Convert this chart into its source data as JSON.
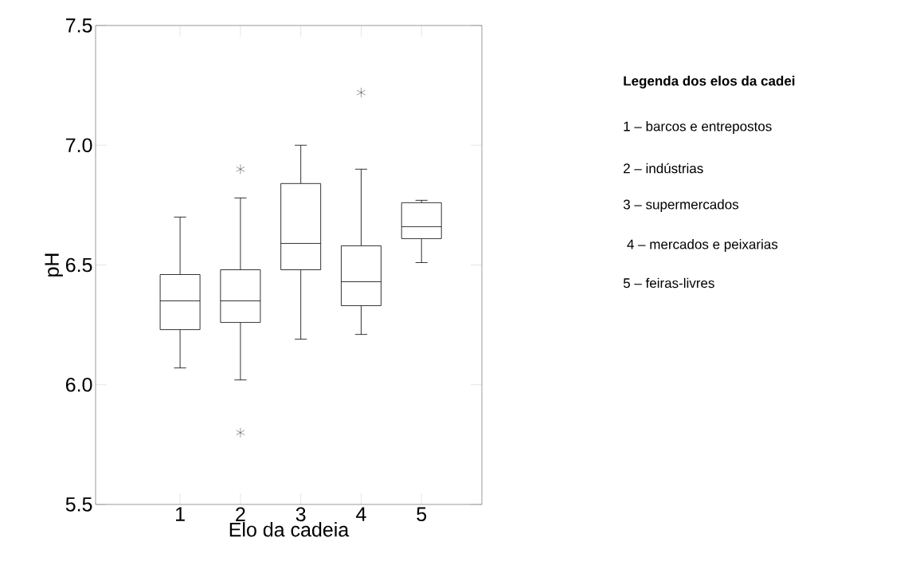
{
  "chart_data": {
    "type": "box",
    "xlabel": "Elo da cadeia",
    "ylabel": "pH",
    "categories": [
      "1",
      "2",
      "3",
      "4",
      "5"
    ],
    "boxes": [
      {
        "low": 6.07,
        "q1": 6.23,
        "median": 6.35,
        "q3": 6.46,
        "high": 6.7
      },
      {
        "low": 6.02,
        "q1": 6.26,
        "median": 6.35,
        "q3": 6.48,
        "high": 6.78,
        "outliers": [
          6.9,
          5.8
        ]
      },
      {
        "low": 6.19,
        "q1": 6.48,
        "median": 6.59,
        "q3": 6.84,
        "high": 7.0
      },
      {
        "low": 6.21,
        "q1": 6.33,
        "median": 6.43,
        "q3": 6.58,
        "high": 6.9,
        "outliers": [
          7.22
        ]
      },
      {
        "low": 6.51,
        "q1": 6.61,
        "median": 6.66,
        "q3": 6.76,
        "high": 6.77
      }
    ],
    "ylim": [
      5.5,
      7.5
    ],
    "yticks": [
      5.5,
      {
        "value": 6.0,
        "label": "6.0"
      },
      6.5,
      {
        "value": 7.0,
        "label": "7.0"
      },
      7.5
    ],
    "grid": false,
    "annotations": [
      "Legenda dos elos da cadei",
      "1 – barcos e entrepostos",
      "2 – indústrias",
      "3 – supermercados",
      " 4 – mercados e  peixarias",
      "5 – feiras-livres"
    ]
  }
}
